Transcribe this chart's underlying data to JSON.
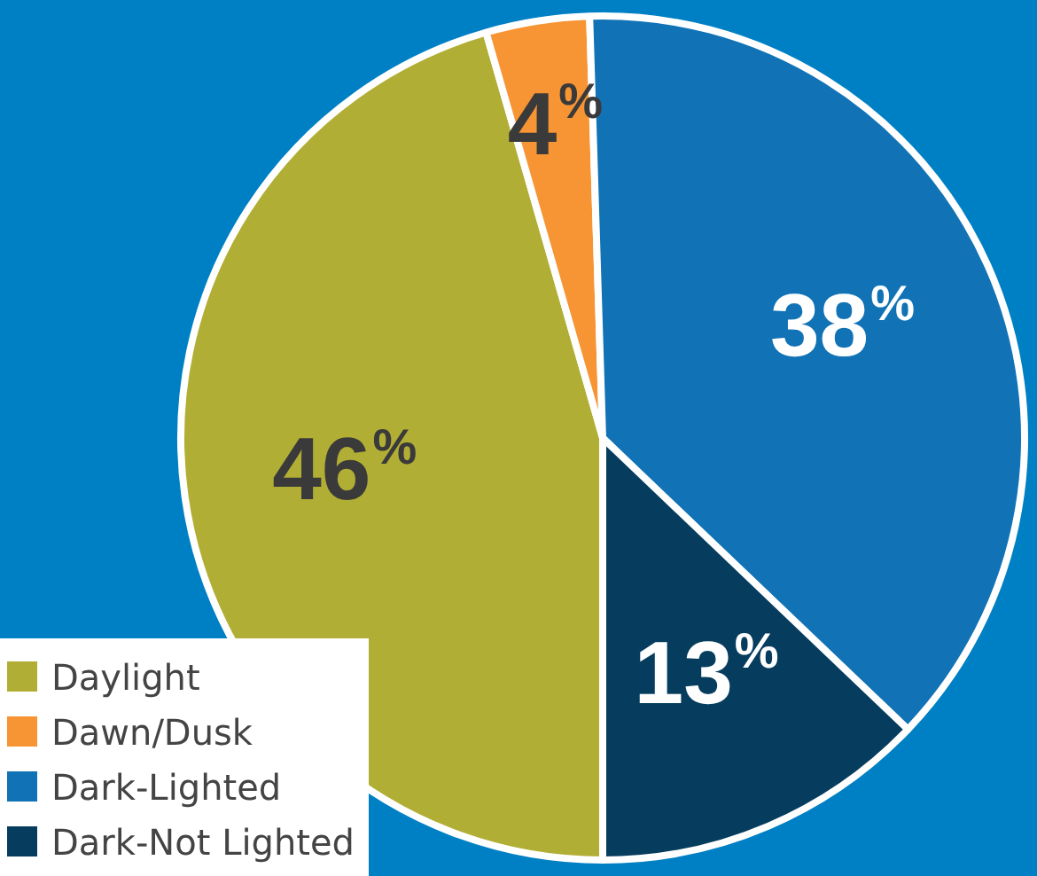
{
  "chart_data": {
    "type": "pie",
    "categories": [
      "Daylight",
      "Dawn/Dusk",
      "Dark-Lighted",
      "Dark-Not Lighted"
    ],
    "values": [
      46,
      4,
      38,
      13
    ],
    "colors": [
      "#b1ae35",
      "#f79433",
      "#1173b5",
      "#063d5e"
    ],
    "value_labels": [
      "46$^{%}$",
      "4$^{%}$",
      "38$^{%}$",
      "13$^{%}$"
    ],
    "legend": "bottom left"
  }
}
